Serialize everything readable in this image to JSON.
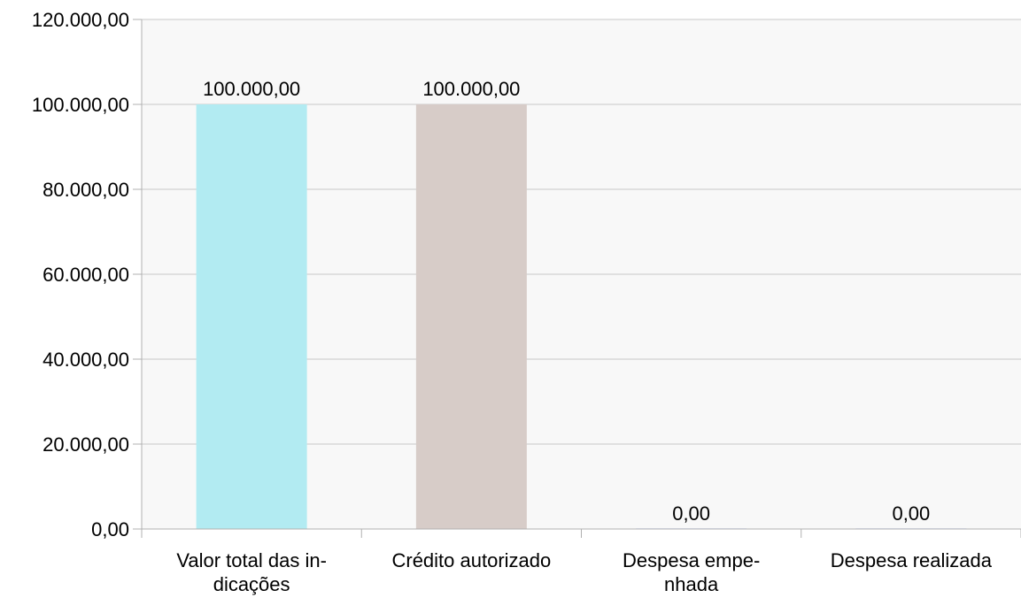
{
  "chart_data": {
    "type": "bar",
    "categories": [
      [
        "Valor total das in-",
        "dicações"
      ],
      [
        "Crédito autorizado"
      ],
      [
        "Despesa empe-",
        "nhada"
      ],
      [
        "Despesa realizada"
      ]
    ],
    "values": [
      100000,
      100000,
      0,
      0
    ],
    "data_labels": [
      "100.000,00",
      "100.000,00",
      "0,00",
      "0,00"
    ],
    "colors": [
      "#b2ebf2",
      "#d7ccc8",
      "#e3e7f7",
      "#e3e7f7"
    ],
    "ylim": [
      0,
      120000
    ],
    "yticks": [
      0,
      20000,
      40000,
      60000,
      80000,
      100000,
      120000
    ],
    "ytick_labels": [
      "0,00",
      "20.000,00",
      "40.000,00",
      "60.000,00",
      "80.000,00",
      "100.000,00",
      "120.000,00"
    ],
    "plot_background": "#f8f8f8",
    "grid": true,
    "title": "",
    "xlabel": "",
    "ylabel": ""
  }
}
